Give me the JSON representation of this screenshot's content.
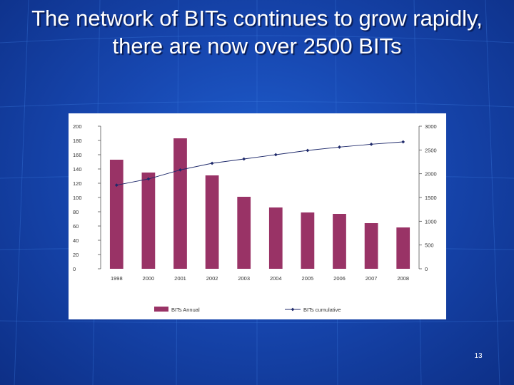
{
  "slide": {
    "title": "The network of BITs continues to grow rapidly, there are now over 2500 BITs",
    "page_number": "13"
  },
  "colors": {
    "background": "#1747b0",
    "bar": "#993366",
    "line": "#1f2a6b",
    "text": "#ffffff"
  },
  "chart_data": {
    "type": "bar",
    "categories": [
      "1998",
      "2000",
      "2001",
      "2002",
      "2003",
      "2004",
      "2005",
      "2006",
      "2007",
      "2008"
    ],
    "series": [
      {
        "name": "BITs Annual",
        "type": "bar",
        "axis": "left",
        "values": [
          153,
          135,
          183,
          131,
          101,
          86,
          79,
          77,
          64,
          58
        ]
      },
      {
        "name": "BITs cumulative",
        "type": "line",
        "axis": "right",
        "values": [
          1760,
          1890,
          2080,
          2220,
          2310,
          2400,
          2490,
          2560,
          2620,
          2670
        ]
      }
    ],
    "left_axis": {
      "min": 0,
      "max": 200,
      "ticks": [
        "0",
        "20",
        "40",
        "60",
        "80",
        "100",
        "120",
        "140",
        "160",
        "180",
        "200"
      ]
    },
    "right_axis": {
      "min": 0,
      "max": 3000,
      "ticks": [
        "0",
        "500",
        "1000",
        "1500",
        "2000",
        "2500",
        "3000"
      ]
    },
    "title": "",
    "xlabel": "",
    "ylabel": "",
    "legend_position": "bottom",
    "grid": false
  }
}
